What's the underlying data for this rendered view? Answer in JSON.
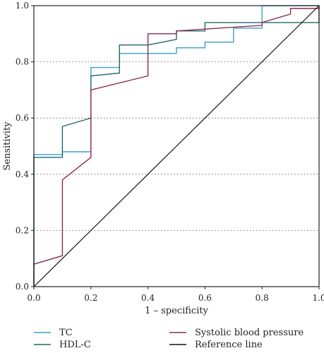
{
  "chart_data": {
    "type": "line",
    "xlabel": "1 – specificity",
    "ylabel": "Sensitivity",
    "xlim": [
      0,
      1
    ],
    "ylim": [
      0,
      1
    ],
    "x_ticks": [
      "0.0",
      "0.2",
      "0.4",
      "0.6",
      "0.8",
      "1.0"
    ],
    "y_ticks": [
      "0.0",
      "0.2",
      "0.4",
      "0.6",
      "0.8",
      "1.0"
    ],
    "grid": "horizontal dotted",
    "legend_position": "bottom",
    "series": [
      {
        "name": "TC",
        "color": "#3aa0c8",
        "x": [
          0.0,
          0.0,
          0.1,
          0.1,
          0.2,
          0.2,
          0.3,
          0.3,
          0.4,
          0.4,
          0.5,
          0.5,
          0.6,
          0.6,
          0.7,
          0.7,
          0.8,
          0.8,
          1.0,
          1.0
        ],
        "y": [
          0.0,
          0.47,
          0.47,
          0.48,
          0.48,
          0.78,
          0.78,
          0.83,
          0.83,
          0.83,
          0.83,
          0.85,
          0.85,
          0.87,
          0.87,
          0.92,
          0.92,
          1.0,
          1.0,
          1.0
        ]
      },
      {
        "name": "HDL-C",
        "color": "#1f6a6e",
        "x": [
          0.0,
          0.0,
          0.1,
          0.1,
          0.2,
          0.2,
          0.3,
          0.3,
          0.4,
          0.4,
          0.5,
          0.5,
          0.6,
          0.6,
          0.8,
          0.8,
          0.9,
          0.9,
          1.0,
          1.0
        ],
        "y": [
          0.0,
          0.46,
          0.46,
          0.57,
          0.6,
          0.75,
          0.76,
          0.86,
          0.86,
          0.86,
          0.88,
          0.91,
          0.91,
          0.94,
          0.94,
          0.94,
          0.94,
          0.94,
          0.94,
          1.0
        ]
      },
      {
        "name": "Systolic blood pressure",
        "color": "#8b2a4e",
        "x": [
          0.0,
          0.0,
          0.1,
          0.1,
          0.2,
          0.2,
          0.4,
          0.4,
          0.5,
          0.5,
          0.8,
          0.8,
          0.9,
          0.9,
          1.0,
          1.0
        ],
        "y": [
          0.0,
          0.08,
          0.11,
          0.38,
          0.46,
          0.7,
          0.75,
          0.9,
          0.9,
          0.91,
          0.93,
          0.94,
          0.97,
          0.99,
          0.99,
          1.0
        ]
      },
      {
        "name": "Reference line",
        "color": "#111111",
        "x": [
          0.0,
          1.0
        ],
        "y": [
          0.0,
          1.0
        ]
      }
    ]
  }
}
